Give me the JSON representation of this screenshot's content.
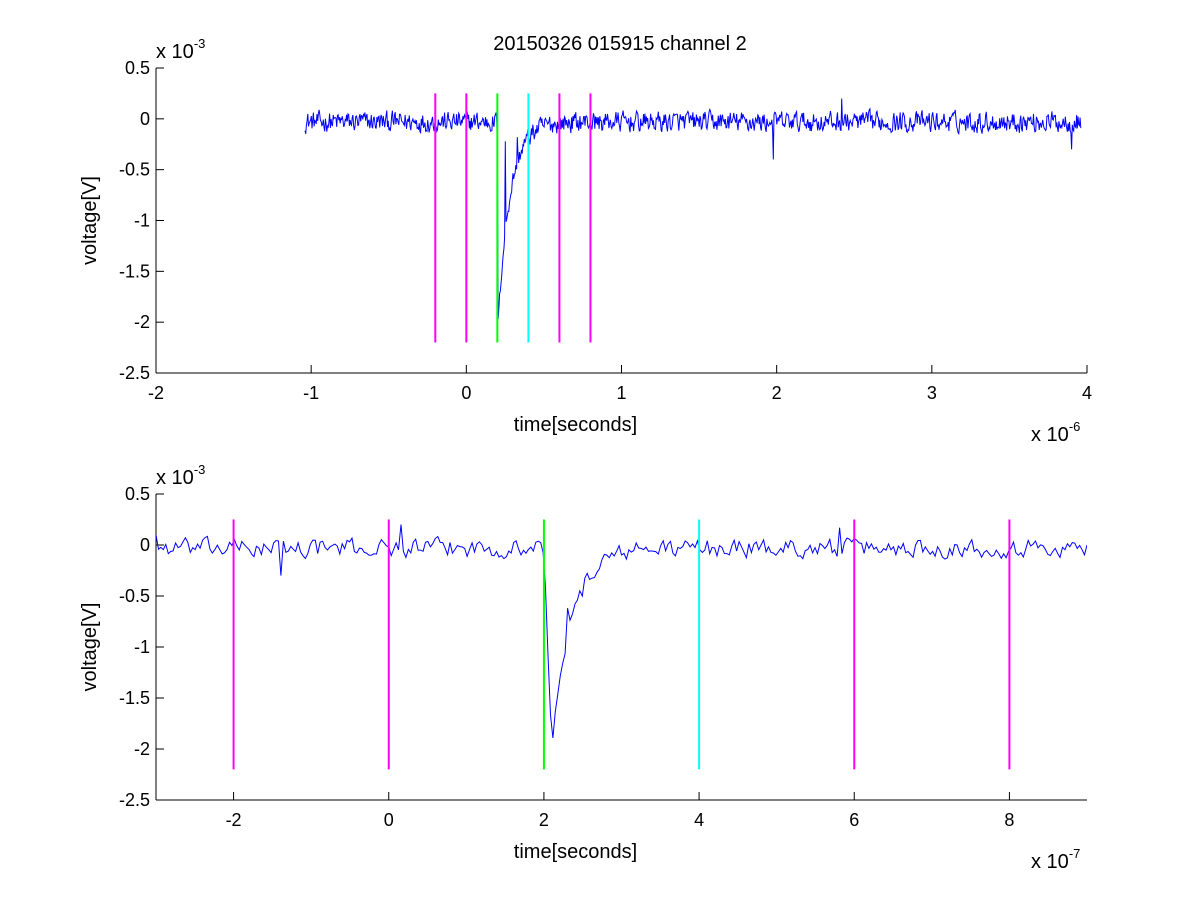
{
  "title": "20150326 015915 channel 2",
  "colors": {
    "trace": "#0000ff",
    "marker_magenta": "#ff00ff",
    "marker_green": "#00ff00",
    "marker_cyan": "#00ffff",
    "axes": "#000000",
    "background": "#ffffff"
  },
  "chart_data": [
    {
      "type": "line",
      "title": "20150326 015915 channel 2",
      "xlabel": "time[seconds]",
      "ylabel": "voltage[V]",
      "x_scale_label": {
        "base": "x 10",
        "exponent": "-6"
      },
      "y_scale_label": {
        "base": "x 10",
        "exponent": "-3"
      },
      "xlim": [
        -2,
        4
      ],
      "ylim": [
        -2.5,
        0.5
      ],
      "x_ticks": [
        -2,
        -1,
        0,
        1,
        2,
        3,
        4
      ],
      "y_ticks": [
        0.5,
        0,
        -0.5,
        -1,
        -1.5,
        -2,
        -2.5
      ],
      "x_tick_labels": [
        "-2",
        "-1",
        "0",
        "1",
        "2",
        "3",
        "4"
      ],
      "y_tick_labels": [
        "0.5",
        "0",
        "-0.5",
        "-1",
        "-1.5",
        "-2",
        "-2.5"
      ],
      "grid": false,
      "series": [
        {
          "style": "noisy trace",
          "color": "#0000ff",
          "x_range": [
            -1.04,
            3.96
          ],
          "baseline": -0.03,
          "noise_amplitude": 0.1,
          "pulse": {
            "start": 0.2,
            "min_at": 0.205,
            "min_value": -2.0,
            "recovery": 0.22
          },
          "features": [
            {
              "x": 0.25,
              "y": -0.22
            },
            {
              "x": 0.33,
              "y": -0.18
            },
            {
              "x": 1.98,
              "y": -0.4
            },
            {
              "x": 2.42,
              "y": 0.2
            },
            {
              "x": 3.9,
              "y": -0.3
            }
          ]
        }
      ],
      "markers": [
        {
          "x": -0.2,
          "color": "#ff00ff",
          "y_from": -2.2,
          "y_to": 0.25
        },
        {
          "x": 0.0,
          "color": "#ff00ff",
          "y_from": -2.2,
          "y_to": 0.25
        },
        {
          "x": 0.2,
          "color": "#00ff00",
          "y_from": -2.2,
          "y_to": 0.25
        },
        {
          "x": 0.4,
          "color": "#00ffff",
          "y_from": -2.2,
          "y_to": 0.25
        },
        {
          "x": 0.6,
          "color": "#ff00ff",
          "y_from": -2.2,
          "y_to": 0.25
        },
        {
          "x": 0.8,
          "color": "#ff00ff",
          "y_from": -2.2,
          "y_to": 0.25
        }
      ]
    },
    {
      "type": "line",
      "xlabel": "time[seconds]",
      "ylabel": "voltage[V]",
      "x_scale_label": {
        "base": "x 10",
        "exponent": "-7"
      },
      "y_scale_label": {
        "base": "x 10",
        "exponent": "-3"
      },
      "xlim": [
        -3,
        9
      ],
      "ylim": [
        -2.5,
        0.5
      ],
      "x_ticks": [
        -2,
        0,
        2,
        4,
        6,
        8
      ],
      "y_ticks": [
        0.5,
        0,
        -0.5,
        -1,
        -1.5,
        -2,
        -2.5
      ],
      "x_tick_labels": [
        "-2",
        "0",
        "2",
        "4",
        "6",
        "8"
      ],
      "y_tick_labels": [
        "0.5",
        "0",
        "-0.5",
        "-1",
        "-1.5",
        "-2",
        "-2.5"
      ],
      "grid": false,
      "series": [
        {
          "style": "noisy trace",
          "color": "#0000ff",
          "x_range": [
            -3,
            9
          ],
          "baseline": -0.03,
          "noise_amplitude": 0.09,
          "pulse": {
            "start": 2.0,
            "min_at": 2.1,
            "min_value": -2.0,
            "recovery": 0.7
          },
          "features": [
            {
              "x": -3.0,
              "y": 0.1
            },
            {
              "x": -1.4,
              "y": -0.3
            },
            {
              "x": 0.15,
              "y": 0.2
            },
            {
              "x": 2.3,
              "y": -0.62
            },
            {
              "x": 2.5,
              "y": -0.5
            },
            {
              "x": 5.8,
              "y": 0.17
            },
            {
              "x": 9.0,
              "y": 0.0
            }
          ]
        }
      ],
      "markers": [
        {
          "x": -2,
          "color": "#ff00ff",
          "y_from": -2.2,
          "y_to": 0.25
        },
        {
          "x": 0,
          "color": "#ff00ff",
          "y_from": -2.2,
          "y_to": 0.25
        },
        {
          "x": 2,
          "color": "#00ff00",
          "y_from": -2.2,
          "y_to": 0.25
        },
        {
          "x": 4,
          "color": "#00ffff",
          "y_from": -2.2,
          "y_to": 0.25
        },
        {
          "x": 6,
          "color": "#ff00ff",
          "y_from": -2.2,
          "y_to": 0.25
        },
        {
          "x": 8,
          "color": "#ff00ff",
          "y_from": -2.2,
          "y_to": 0.25
        }
      ]
    }
  ]
}
